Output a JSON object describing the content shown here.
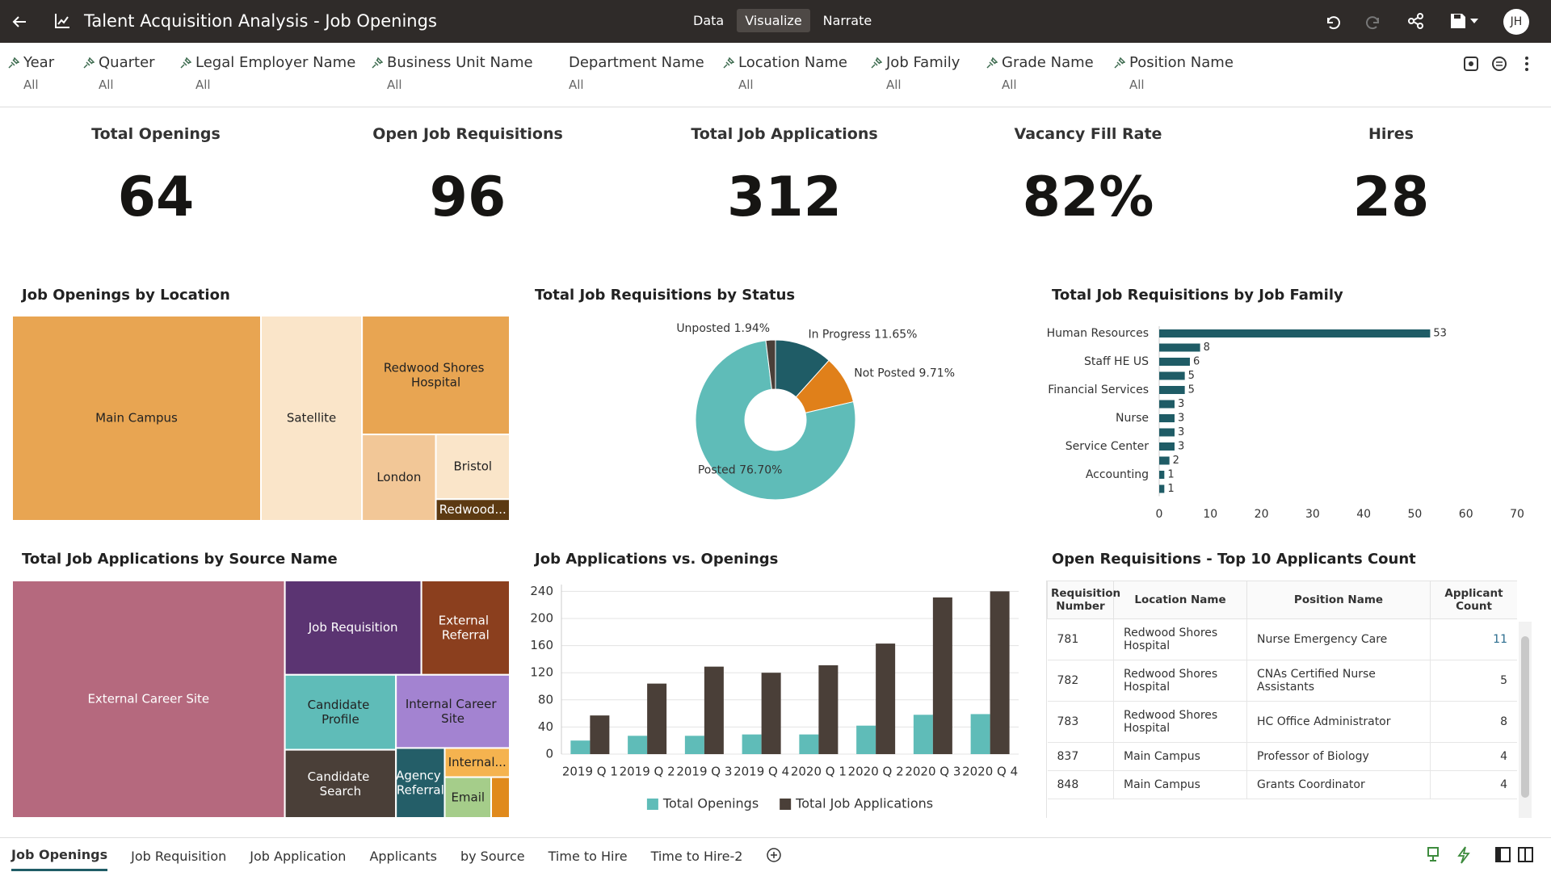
{
  "header": {
    "title": "Talent Acquisition Analysis - Job Openings",
    "modes": [
      "Data",
      "Visualize",
      "Narrate"
    ],
    "user": "JH"
  },
  "filters": [
    {
      "name": "Year",
      "value": "All",
      "pinned": true
    },
    {
      "name": "Quarter",
      "value": "All",
      "pinned": true
    },
    {
      "name": "Legal Employer Name",
      "value": "All",
      "pinned": true
    },
    {
      "name": "Business Unit Name",
      "value": "All",
      "pinned": true
    },
    {
      "name": "Department Name",
      "value": "All",
      "pinned": false
    },
    {
      "name": "Location Name",
      "value": "All",
      "pinned": true
    },
    {
      "name": "Job Family",
      "value": "All",
      "pinned": true
    },
    {
      "name": "Grade Name",
      "value": "All",
      "pinned": true
    },
    {
      "name": "Position Name",
      "value": "All",
      "pinned": true
    }
  ],
  "kpis": [
    {
      "label": "Total Openings",
      "value": "64"
    },
    {
      "label": "Open Job Requisitions",
      "value": "96"
    },
    {
      "label": "Total Job Applications",
      "value": "312"
    },
    {
      "label": "Vacancy Fill Rate",
      "value": "82%"
    },
    {
      "label": "Hires",
      "value": "28"
    }
  ],
  "chart_data": [
    {
      "type": "treemap",
      "title": "Job Openings by Location",
      "categories": [
        "Main Campus",
        "Satellite",
        "Redwood Shores Hospital",
        "London",
        "Bristol",
        "Redwood..."
      ],
      "values": [
        32,
        13,
        11,
        4,
        3,
        1
      ],
      "colors": [
        "#e8a552",
        "#fae5c9",
        "#e8a552",
        "#f2c797",
        "#fae5c9",
        "#5c3a12"
      ]
    },
    {
      "type": "pie",
      "donut": true,
      "title": "Total Job Requisitions by Status",
      "categories": [
        "In Progress",
        "Not Posted",
        "Posted",
        "Unposted"
      ],
      "values": [
        11.65,
        9.71,
        76.7,
        1.94
      ],
      "value_labels": [
        "11.65%",
        "9.71%",
        "76.70%",
        "1.94%"
      ],
      "colors": [
        "#1f5c66",
        "#e0801a",
        "#5fbcb8",
        "#4a3f38"
      ]
    },
    {
      "type": "bar",
      "orientation": "horizontal",
      "title": "Total Job Requisitions by Job Family",
      "categories": [
        "Human Resources",
        null,
        "Staff HE US",
        null,
        "Financial Services",
        null,
        "Nurse",
        null,
        "Service Center",
        null,
        "Accounting",
        null
      ],
      "values": [
        53,
        8,
        6,
        5,
        5,
        3,
        3,
        3,
        3,
        2,
        1,
        1
      ],
      "color": "#1f5c66",
      "xlim": [
        0,
        70
      ],
      "xticks": [
        0,
        10,
        20,
        30,
        40,
        50,
        60,
        70
      ],
      "grid": false
    },
    {
      "type": "treemap",
      "title": "Total Job Applications by Source Name",
      "categories": [
        "External Career Site",
        "Job Requisition",
        "External Referral",
        "Candidate Profile",
        "Candidate Search",
        "Internal Career Site",
        "Agency Referral",
        "Internal...",
        "Email",
        null
      ],
      "values": [
        171,
        34,
        22,
        22,
        20,
        22,
        9,
        5,
        5,
        2
      ],
      "colors": [
        "#b5697e",
        "#5b3472",
        "#8b3f1e",
        "#5fbcb8",
        "#4a3f38",
        "#a383d1",
        "#245e68",
        "#f5b34f",
        "#a5cd8a",
        "#e08a1c"
      ]
    },
    {
      "type": "bar",
      "orientation": "vertical",
      "title": "Job Applications vs. Openings",
      "categories": [
        "2019 Q 1",
        "2019 Q 2",
        "2019 Q 3",
        "2019 Q 4",
        "2020 Q 1",
        "2020 Q 2",
        "2020 Q 3",
        "2020 Q 4"
      ],
      "series": [
        {
          "name": "Total Openings",
          "color": "#5fbcb8",
          "values": [
            20,
            27,
            27,
            29,
            29,
            42,
            58,
            59
          ]
        },
        {
          "name": "Total Job Applications",
          "color": "#4a3f38",
          "values": [
            57,
            104,
            129,
            120,
            131,
            163,
            231,
            240
          ]
        }
      ],
      "ylim": [
        0,
        250
      ],
      "yticks": [
        0,
        40,
        80,
        120,
        160,
        200,
        240
      ],
      "grid": true,
      "legend": "bottom"
    }
  ],
  "table": {
    "title": "Open Requisitions - Top 10 Applicants Count",
    "columns": [
      "Requisition Number",
      "Location Name",
      "Position Name",
      "Applicant Count"
    ],
    "rows": [
      [
        781,
        "Redwood Shores Hospital",
        "Nurse Emergency Care",
        11
      ],
      [
        782,
        "Redwood Shores Hospital",
        "CNAs Certified Nurse Assistants",
        5
      ],
      [
        783,
        "Redwood Shores Hospital",
        "HC Office Administrator",
        8
      ],
      [
        837,
        "Main Campus",
        "Professor of Biology",
        4
      ],
      [
        848,
        "Main Campus",
        "Grants Coordinator",
        4
      ]
    ]
  },
  "tabs": [
    "Job Openings",
    "Job Requisition",
    "Job Application",
    "Applicants",
    "by Source",
    "Time to Hire",
    "Time to Hire-2"
  ]
}
